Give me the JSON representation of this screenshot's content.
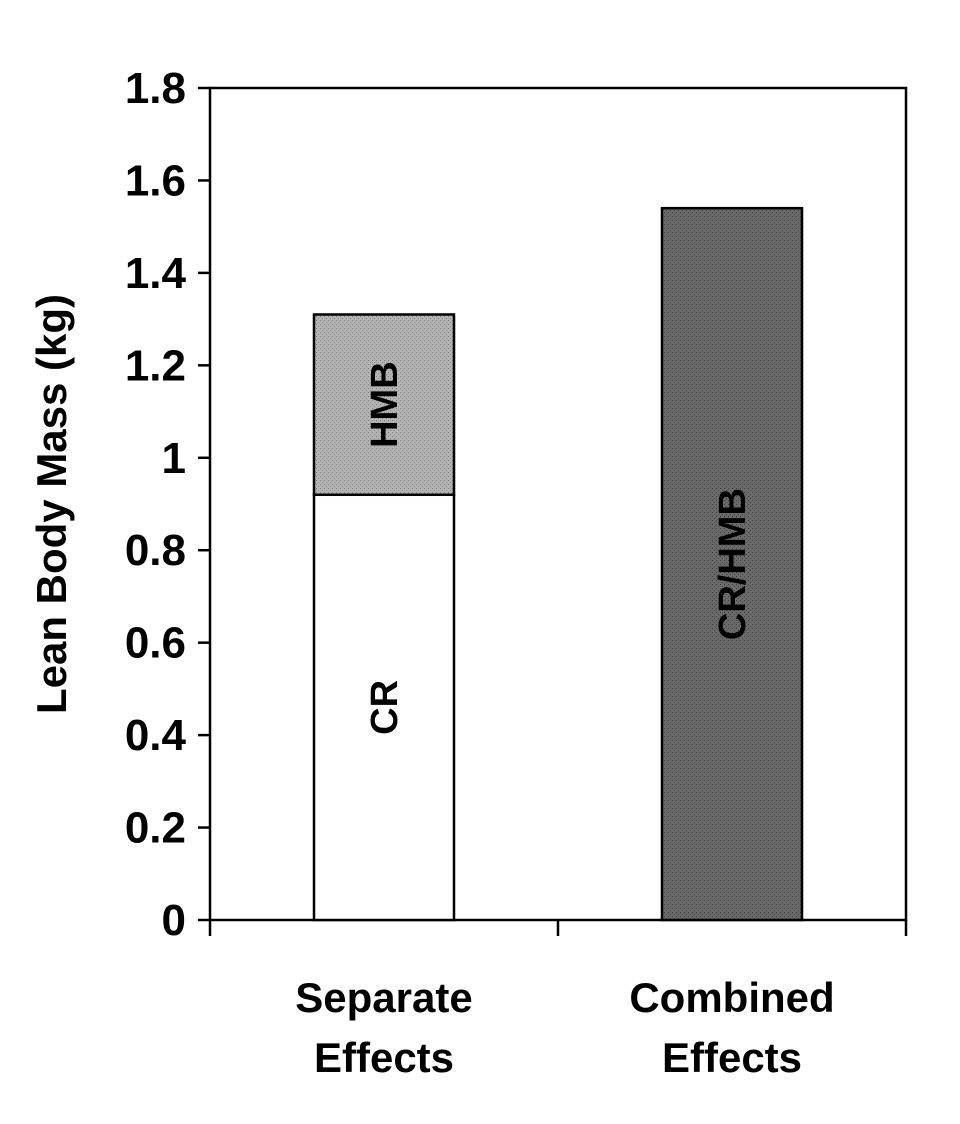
{
  "chart_data": {
    "type": "bar",
    "stacked": true,
    "ylabel": "Lean Body Mass (kg)",
    "xlabel": "",
    "ylim": [
      0,
      1.8
    ],
    "yticks": [
      "0",
      "0.2",
      "0.4",
      "0.6",
      "0.8",
      "1",
      "1.2",
      "1.4",
      "1.6",
      "1.8"
    ],
    "grid": false,
    "legend": "none",
    "categories": [
      {
        "lines": [
          "Separate",
          "Effects"
        ]
      },
      {
        "lines": [
          "Combined",
          "Effects"
        ]
      }
    ],
    "bars": [
      {
        "category": "Separate Effects",
        "segments": [
          {
            "label": "CR",
            "start": 0,
            "value": 0.92,
            "color": "#ffffff"
          },
          {
            "label": "HMB",
            "start": 0.92,
            "value": 0.39,
            "color": "#a8a8a8"
          }
        ]
      },
      {
        "category": "Combined Effects",
        "segments": [
          {
            "label": "CR/HMB",
            "start": 0,
            "value": 1.54,
            "color": "#5e5e5e"
          }
        ]
      }
    ]
  }
}
